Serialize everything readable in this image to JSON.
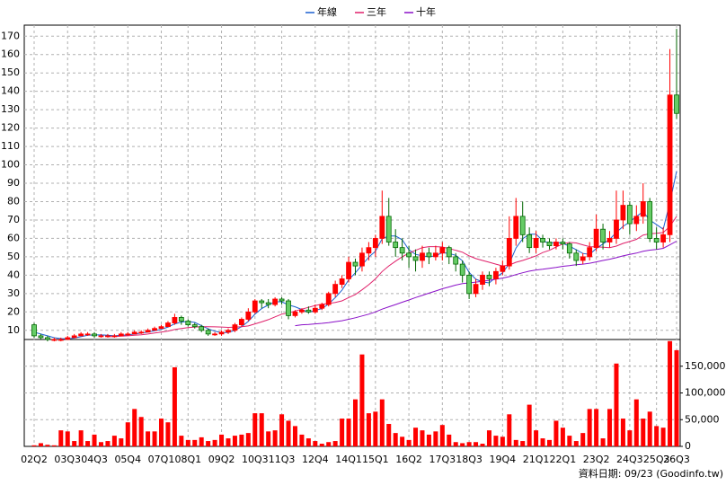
{
  "chart_data": {
    "type": "candlestick",
    "categories": [
      "02Q2",
      null,
      null,
      null,
      null,
      "03Q3",
      null,
      null,
      null,
      "04Q3",
      null,
      null,
      null,
      null,
      "05Q4",
      null,
      null,
      null,
      null,
      "07Q1",
      null,
      null,
      null,
      "08Q1",
      null,
      null,
      null,
      null,
      "09Q2",
      null,
      null,
      null,
      null,
      "10Q3",
      null,
      null,
      null,
      "11Q3",
      null,
      null,
      null,
      null,
      "12Q4",
      null,
      null,
      null,
      null,
      "14Q1",
      null,
      null,
      null,
      "15Q1",
      null,
      null,
      null,
      null,
      "16Q2",
      null,
      null,
      null,
      null,
      "17Q3",
      null,
      null,
      null,
      "18Q3",
      null,
      null,
      null,
      null,
      "19Q4",
      null,
      null,
      null,
      null,
      "21Q1",
      null,
      null,
      null,
      "22Q1",
      null,
      null,
      null,
      null,
      "23Q2",
      null,
      null,
      null,
      null,
      "24Q3",
      null,
      null,
      null,
      "25Q3",
      null,
      null,
      "26Q3"
    ],
    "open": [
      13,
      7,
      6,
      5,
      5,
      5,
      6,
      7,
      8,
      8,
      7,
      7,
      7,
      7,
      8,
      8,
      9,
      9,
      10,
      11,
      12,
      14,
      17,
      15,
      13,
      12,
      10,
      8,
      8,
      9,
      10,
      13,
      16,
      20,
      26,
      25,
      24,
      27,
      26,
      18,
      20,
      21,
      20,
      22,
      24,
      30,
      35,
      38,
      47,
      45,
      52,
      55,
      60,
      72,
      58,
      55,
      52,
      50,
      48,
      52,
      50,
      52,
      55,
      50,
      46,
      40,
      30,
      35,
      40,
      38,
      42,
      45,
      60,
      72,
      62,
      55,
      60,
      58,
      56,
      58,
      57,
      52,
      48,
      50,
      55,
      65,
      58,
      60,
      70,
      78,
      68,
      72,
      80,
      60,
      58,
      62,
      138
    ],
    "high": [
      14,
      8,
      7,
      6,
      6,
      7,
      8,
      9,
      9,
      9,
      8,
      8,
      8,
      9,
      9,
      10,
      10,
      11,
      12,
      13,
      15,
      19,
      18,
      16,
      14,
      13,
      11,
      9,
      10,
      11,
      14,
      17,
      22,
      27,
      27,
      27,
      28,
      28,
      27,
      21,
      22,
      23,
      24,
      25,
      31,
      37,
      40,
      50,
      49,
      55,
      58,
      62,
      86,
      82,
      65,
      60,
      56,
      54,
      56,
      55,
      56,
      58,
      56,
      52,
      48,
      42,
      38,
      42,
      42,
      44,
      48,
      72,
      82,
      80,
      66,
      64,
      62,
      60,
      60,
      60,
      58,
      54,
      52,
      58,
      73,
      68,
      64,
      86,
      86,
      80,
      78,
      90,
      82,
      66,
      66,
      163,
      174
    ],
    "low": [
      6,
      5,
      4,
      4,
      4,
      5,
      6,
      7,
      7,
      6,
      6,
      6,
      6,
      7,
      7,
      8,
      8,
      9,
      10,
      11,
      12,
      13,
      13,
      12,
      11,
      9,
      7,
      7,
      7,
      8,
      9,
      12,
      15,
      19,
      22,
      22,
      23,
      24,
      16,
      17,
      19,
      19,
      19,
      21,
      23,
      28,
      33,
      36,
      40,
      42,
      48,
      50,
      57,
      56,
      50,
      48,
      44,
      42,
      44,
      46,
      48,
      48,
      46,
      42,
      36,
      27,
      28,
      32,
      34,
      35,
      40,
      43,
      56,
      58,
      52,
      52,
      55,
      54,
      54,
      54,
      49,
      45,
      46,
      48,
      53,
      54,
      55,
      57,
      65,
      62,
      64,
      68,
      58,
      54,
      55,
      58,
      125
    ],
    "close": [
      7,
      6,
      5,
      5,
      5,
      6,
      7,
      8,
      8,
      7,
      7,
      7,
      7,
      8,
      8,
      9,
      9,
      10,
      11,
      12,
      14,
      17,
      15,
      13,
      12,
      10,
      8,
      8,
      9,
      10,
      13,
      16,
      20,
      26,
      25,
      24,
      27,
      26,
      18,
      20,
      21,
      20,
      22,
      24,
      30,
      35,
      38,
      47,
      45,
      52,
      55,
      60,
      72,
      58,
      55,
      52,
      50,
      48,
      52,
      50,
      52,
      55,
      50,
      46,
      40,
      30,
      35,
      40,
      38,
      42,
      45,
      60,
      72,
      62,
      55,
      60,
      58,
      56,
      58,
      57,
      52,
      48,
      50,
      55,
      65,
      58,
      60,
      70,
      78,
      68,
      72,
      80,
      60,
      58,
      62,
      138,
      128
    ],
    "up_color": "#ff0000",
    "down_color": "#66cc66",
    "down_edge": "#006600",
    "lines": [
      {
        "name": "年線",
        "color": "#1a5fd0",
        "values": [
          9,
          8,
          7,
          6,
          5.5,
          5.3,
          5.8,
          6.5,
          7.3,
          7.5,
          7.5,
          7.3,
          7,
          7.3,
          7.5,
          8,
          8.5,
          9,
          9.8,
          10.5,
          11.8,
          13.5,
          14.5,
          14.8,
          14.3,
          12.5,
          10.8,
          9.5,
          8.8,
          8.8,
          10,
          12,
          14.8,
          18.8,
          21.8,
          23.8,
          25.5,
          25.5,
          23.8,
          22.8,
          21.3,
          19.8,
          20.8,
          21.8,
          24.3,
          27.8,
          31.8,
          37.5,
          41.3,
          45.5,
          49.8,
          53,
          59.8,
          61.3,
          61.3,
          59.3,
          53.8,
          51.3,
          50.5,
          50,
          50.5,
          52.3,
          51.8,
          50.8,
          47.8,
          41.5,
          37.8,
          36.3,
          35.8,
          38.8,
          41.3,
          46.3,
          54.8,
          59.8,
          62.3,
          62.3,
          58.8,
          57.3,
          58,
          57.3,
          55.8,
          53.8,
          51.8,
          51.3,
          54.5,
          57,
          59.5,
          63.3,
          66.5,
          69,
          72,
          74.5,
          70,
          67.5,
          65,
          79.5,
          96.5
        ]
      },
      {
        "name": "三年",
        "color": "#e0206a",
        "values": [
          null,
          null,
          null,
          null,
          null,
          null,
          null,
          null,
          null,
          null,
          null,
          6.6,
          6.6,
          6.8,
          7,
          7.3,
          7.6,
          8,
          8.5,
          9,
          9.6,
          10.4,
          11,
          11.5,
          11.8,
          12,
          12,
          11.9,
          11.8,
          11.6,
          11.7,
          12,
          12.4,
          13.5,
          14.6,
          15.8,
          17.3,
          18.8,
          19.5,
          20.5,
          21.5,
          22.5,
          23.5,
          24.2,
          24.6,
          25.2,
          26,
          27.8,
          29.5,
          32,
          34.8,
          38,
          42,
          45,
          47.6,
          50,
          52,
          53.5,
          55,
          55.5,
          55.5,
          55.3,
          54.5,
          53.5,
          52.5,
          50.5,
          49,
          48,
          47,
          46,
          45,
          45.5,
          47,
          48,
          49.2,
          50.5,
          52.3,
          53.5,
          55.3,
          57,
          57.8,
          57.5,
          56.5,
          55.5,
          55.4,
          55.2,
          55,
          55.8,
          57.3,
          58.3,
          59.5,
          61.8,
          62.5,
          62.8,
          63.2,
          66.5,
          72
        ]
      },
      {
        "name": "十年",
        "color": "#8a10c8",
        "values": [
          null,
          null,
          null,
          null,
          null,
          null,
          null,
          null,
          null,
          null,
          null,
          null,
          null,
          null,
          null,
          null,
          null,
          null,
          null,
          null,
          null,
          null,
          null,
          null,
          null,
          null,
          null,
          null,
          null,
          null,
          null,
          null,
          null,
          null,
          null,
          null,
          null,
          null,
          null,
          12.5,
          13,
          13.2,
          13.5,
          13.8,
          14.2,
          14.7,
          15.2,
          16,
          16.8,
          17.8,
          18.8,
          20,
          21.5,
          22.8,
          24,
          25.3,
          26.5,
          27.8,
          29,
          30.2,
          31.4,
          32.6,
          33.6,
          34.6,
          35.4,
          35.8,
          36.2,
          36.7,
          37.2,
          37.8,
          38.4,
          39.2,
          40.3,
          41.3,
          42.2,
          42.8,
          43.2,
          43.7,
          44.2,
          44.8,
          45.2,
          45.7,
          46,
          46.5,
          47.2,
          48,
          48.7,
          49.5,
          50.5,
          51.3,
          52,
          53,
          53.6,
          54,
          54.6,
          56.5,
          58.5
        ]
      }
    ],
    "ylim": [
      5,
      176
    ],
    "yticks": [
      10,
      20,
      30,
      40,
      50,
      60,
      70,
      80,
      90,
      100,
      110,
      120,
      130,
      140,
      150,
      160,
      170
    ],
    "grid": true,
    "volume": {
      "color": "#ff0000",
      "values": [
        2000,
        6000,
        3000,
        2000,
        30000,
        28000,
        10000,
        30000,
        10000,
        22000,
        8000,
        10000,
        20000,
        15000,
        45000,
        70000,
        55000,
        28000,
        28000,
        52000,
        45000,
        148000,
        20000,
        12000,
        12000,
        17000,
        10000,
        12000,
        22000,
        15000,
        20000,
        22000,
        25000,
        62000,
        62000,
        28000,
        30000,
        60000,
        48000,
        38000,
        22000,
        15000,
        10000,
        5000,
        8000,
        10000,
        52000,
        52000,
        88000,
        172000,
        62000,
        65000,
        88000,
        42000,
        25000,
        18000,
        12000,
        35000,
        30000,
        22000,
        28000,
        40000,
        22000,
        8000,
        6000,
        8000,
        8000,
        5000,
        30000,
        20000,
        18000,
        60000,
        12000,
        10000,
        78000,
        30000,
        15000,
        12000,
        48000,
        35000,
        20000,
        10000,
        25000,
        70000,
        70000,
        15000,
        70000,
        155000,
        52000,
        30000,
        88000,
        52000,
        65000,
        38000,
        35000,
        197000,
        180000
      ],
      "ylim": [
        0,
        200000
      ],
      "yticks": [
        0,
        {
          "value": 50000,
          "label": "50,000"
        },
        {
          "value": 100000,
          "label": "100,000"
        },
        {
          "value": 150000,
          "label": "150,000"
        }
      ]
    },
    "footer": "資料日期: 09/23 (Goodinfo.tw)"
  }
}
